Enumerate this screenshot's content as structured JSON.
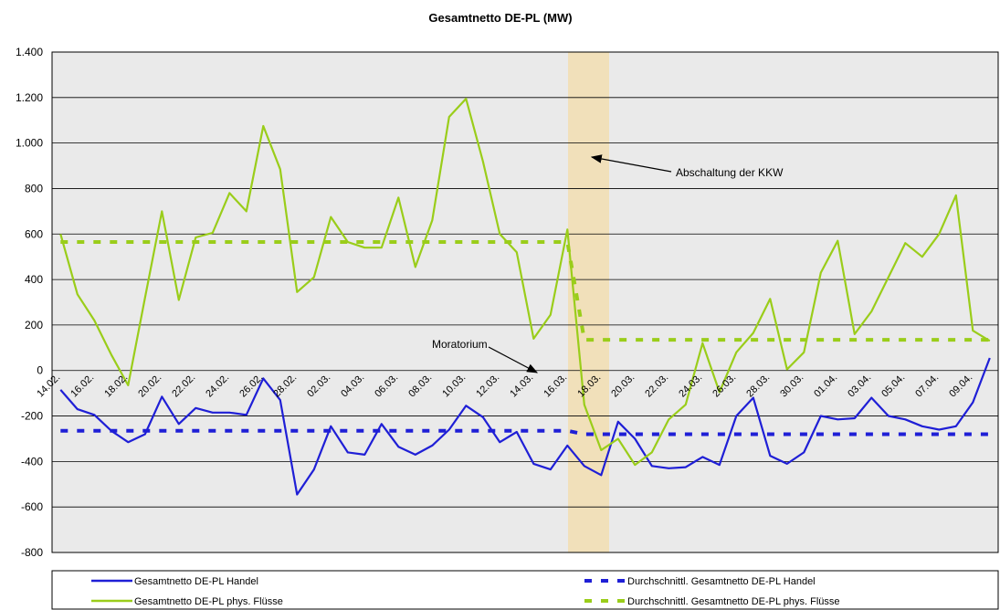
{
  "chart_data": {
    "type": "line",
    "title": "Gesamtnetto DE-PL (MW)",
    "categories": [
      "14.02.",
      null,
      "16.02.",
      null,
      "18.02.",
      null,
      "20.02.",
      null,
      "22.02.",
      null,
      "24.02.",
      null,
      "26.02.",
      null,
      "28.02.",
      null,
      "02.03.",
      null,
      "04.03.",
      null,
      "06.03.",
      null,
      "08.03.",
      null,
      "10.03.",
      null,
      "12.03.",
      null,
      "14.03.",
      null,
      "16.03.",
      null,
      "18.03.",
      null,
      "20.03.",
      null,
      "22.03.",
      null,
      "24.03.",
      null,
      "26.03.",
      null,
      "28.03.",
      null,
      "30.03.",
      null,
      "01.04.",
      null,
      "03.04.",
      null,
      "05.04.",
      null,
      "07.04.",
      null,
      "09.04.",
      null
    ],
    "series": [
      {
        "name": "Gesamtnetto DE-PL Handel",
        "color": "#1f1fd6",
        "dashed": false,
        "values": [
          -85,
          -170,
          -195,
          -265,
          -315,
          -280,
          -115,
          -235,
          -165,
          -185,
          -185,
          -195,
          -35,
          -130,
          -545,
          -435,
          -245,
          -360,
          -370,
          -235,
          -335,
          -370,
          -330,
          -260,
          -155,
          -205,
          -315,
          -270,
          -410,
          -435,
          -330,
          -420,
          -460,
          -225,
          -300,
          -420,
          -430,
          -425,
          -380,
          -415,
          -200,
          -120,
          -375,
          -410,
          -360,
          -200,
          -215,
          -210,
          -120,
          -200,
          -215,
          -245,
          -260,
          -245,
          -140,
          55
        ]
      },
      {
        "name": "Durchschnittl. Gesamtnetto DE-PL Handel",
        "color": "#1f1fd6",
        "dashed": true,
        "values": [
          -265,
          -265,
          -265,
          -265,
          -265,
          -265,
          -265,
          -265,
          -265,
          -265,
          -265,
          -265,
          -265,
          -265,
          -265,
          -265,
          -265,
          -265,
          -265,
          -265,
          -265,
          -265,
          -265,
          -265,
          -265,
          -265,
          -265,
          -265,
          -265,
          -265,
          -265,
          -280,
          -280,
          -280,
          -280,
          -280,
          -280,
          -280,
          -280,
          -280,
          -280,
          -280,
          -280,
          -280,
          -280,
          -280,
          -280,
          -280,
          -280,
          -280,
          -280,
          -280,
          -280,
          -280,
          -280,
          -280
        ]
      },
      {
        "name": "Gesamtnetto DE-PL phys. Flüsse",
        "color": "#9acd1a",
        "dashed": false,
        "values": [
          600,
          335,
          220,
          70,
          -65,
          320,
          700,
          310,
          585,
          605,
          780,
          700,
          1075,
          885,
          345,
          410,
          675,
          565,
          540,
          540,
          760,
          455,
          660,
          1115,
          1195,
          920,
          600,
          520,
          140,
          245,
          620,
          -150,
          -350,
          -300,
          -415,
          -360,
          -215,
          -150,
          120,
          -95,
          80,
          165,
          315,
          5,
          80,
          430,
          570,
          160,
          260,
          410,
          560,
          500,
          600,
          770,
          175,
          130
        ]
      },
      {
        "name": "Durchschnittl. Gesamtnetto DE-PL phys. Flüsse",
        "color": "#9acd1a",
        "dashed": true,
        "values": [
          565,
          565,
          565,
          565,
          565,
          565,
          565,
          565,
          565,
          565,
          565,
          565,
          565,
          565,
          565,
          565,
          565,
          565,
          565,
          565,
          565,
          565,
          565,
          565,
          565,
          565,
          565,
          565,
          565,
          565,
          565,
          135,
          135,
          135,
          135,
          135,
          135,
          135,
          135,
          135,
          135,
          135,
          135,
          135,
          135,
          135,
          135,
          135,
          135,
          135,
          135,
          135,
          135,
          135,
          135,
          135
        ]
      }
    ],
    "ylim": [
      -800,
      1400
    ],
    "yticks": [
      -800,
      -600,
      -400,
      -200,
      0,
      200,
      400,
      600,
      800,
      {
        "value": 1000,
        "label": "1.000"
      },
      {
        "value": 1200,
        "label": "1.200"
      },
      {
        "value": 1400,
        "label": "1.400"
      }
    ],
    "grid": true,
    "annotations": [
      "Abschaltung der KKW",
      "Moratorium"
    ]
  }
}
